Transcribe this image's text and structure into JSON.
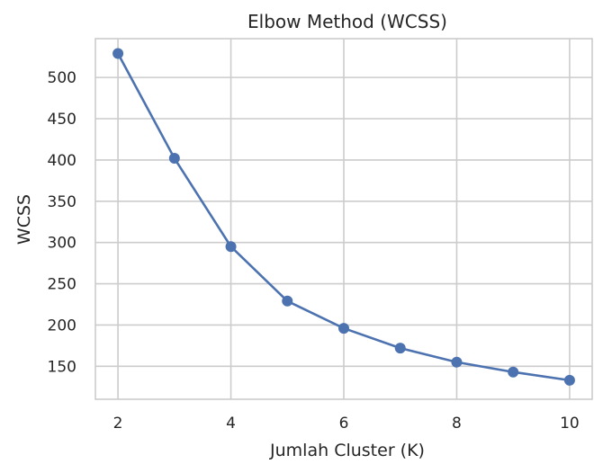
{
  "chart_data": {
    "type": "line",
    "title": "Elbow Method (WCSS)",
    "xlabel": "Jumlah Cluster (K)",
    "ylabel": "WCSS",
    "x": [
      2,
      3,
      4,
      5,
      6,
      7,
      8,
      9,
      10
    ],
    "series": [
      {
        "values": [
          529,
          402,
          295,
          229,
          196,
          172,
          155,
          143,
          133
        ]
      }
    ],
    "xlim": [
      1.6,
      10.4
    ],
    "ylim": [
      110,
      547
    ],
    "xticks": [
      2,
      4,
      6,
      8,
      10
    ],
    "yticks": [
      150,
      200,
      250,
      300,
      350,
      400,
      450,
      500
    ],
    "grid": true,
    "colors": {
      "line": "#4c72b0",
      "grid": "#cccccc",
      "text": "#262626"
    }
  }
}
